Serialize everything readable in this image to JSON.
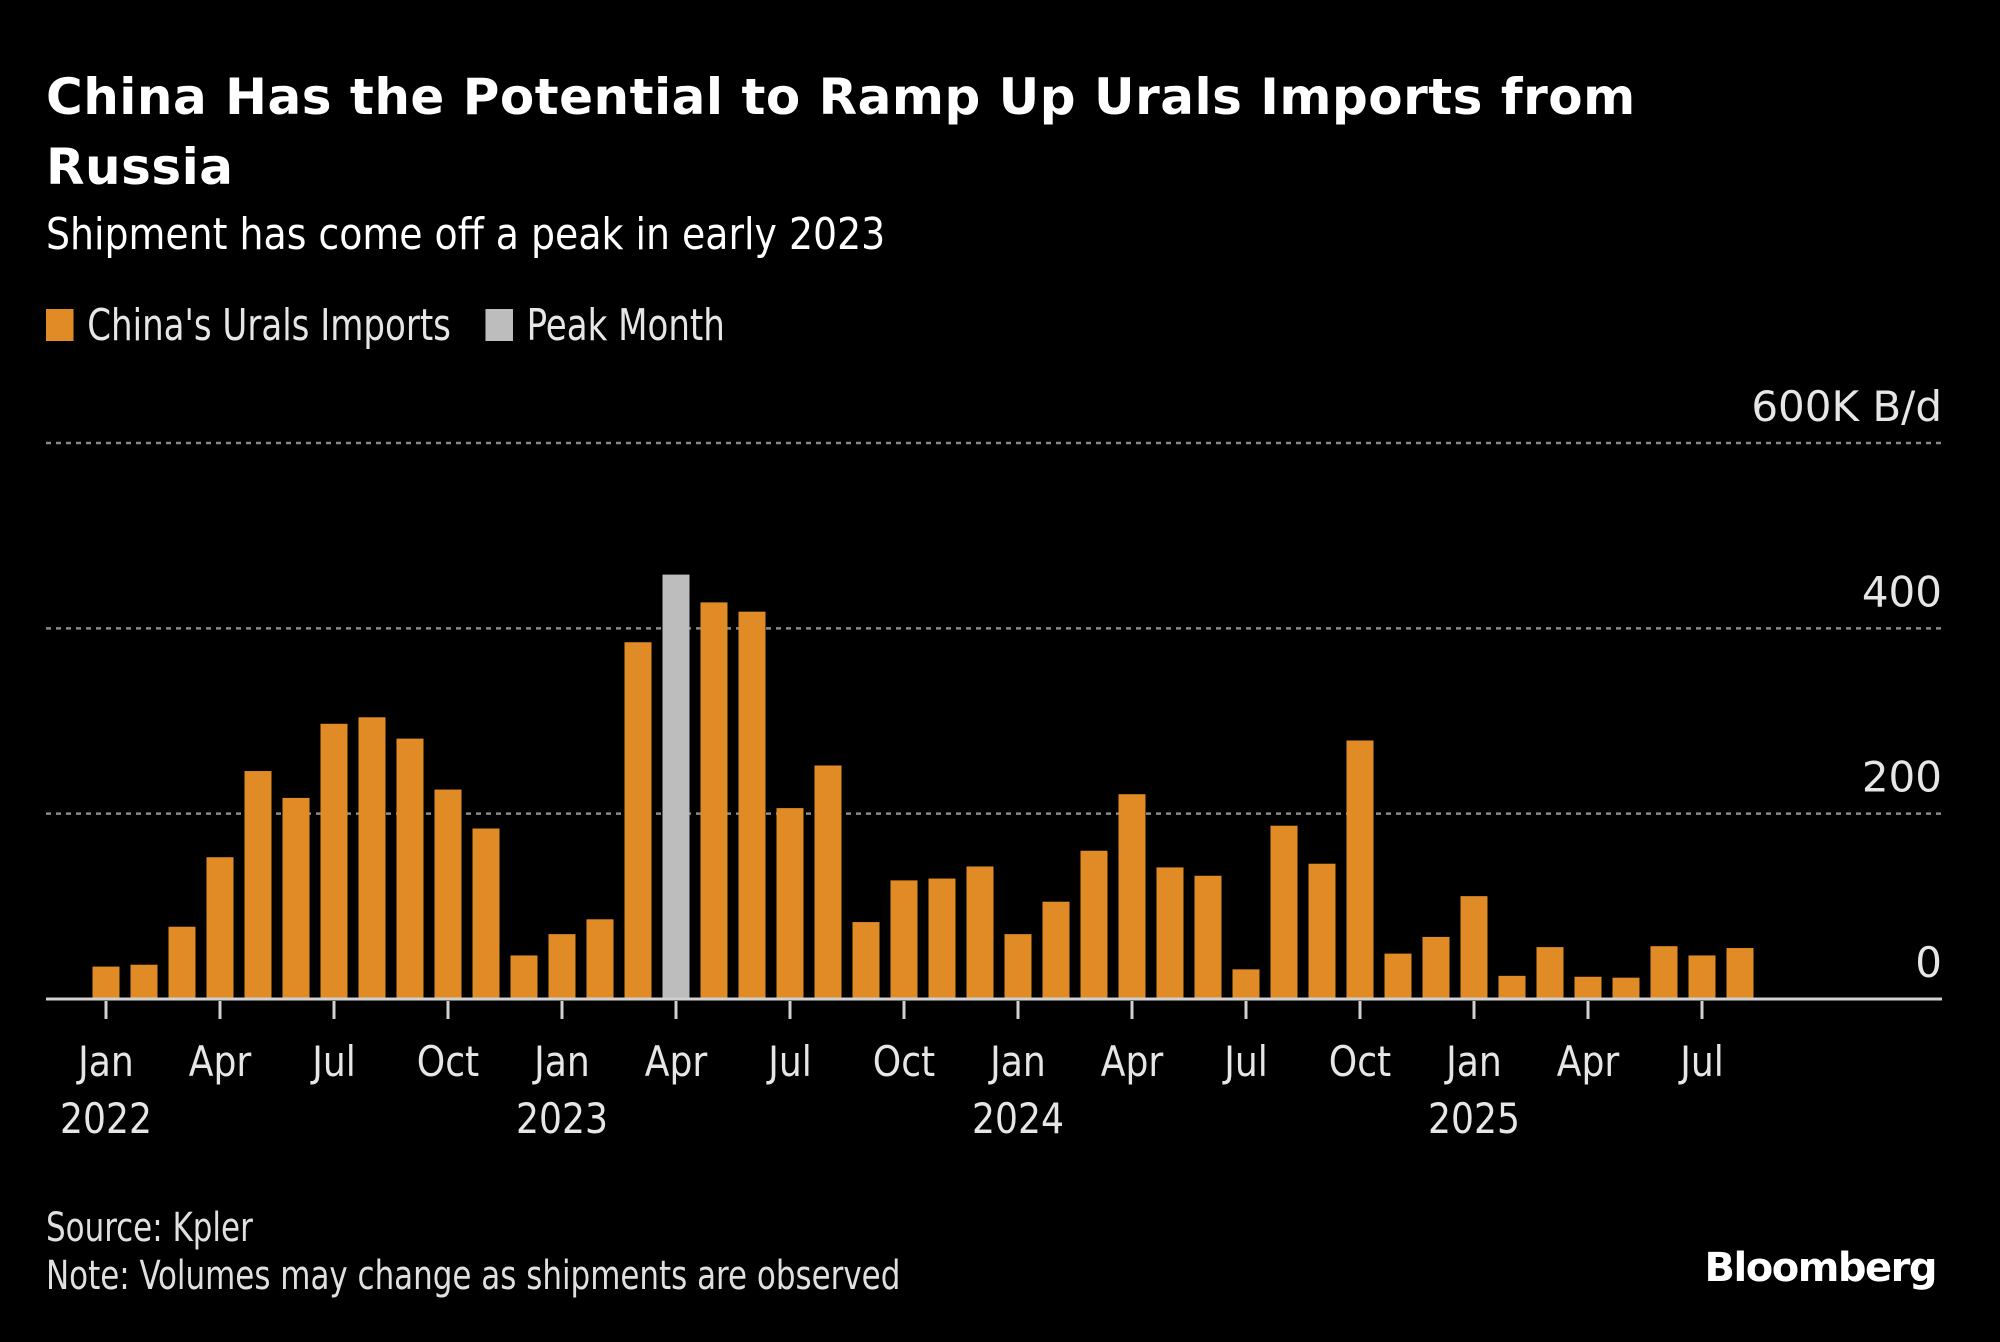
{
  "header": {
    "title": "China Has the Potential to Ramp Up Urals Imports from Russia",
    "subtitle": "Shipment has come off a peak in early 2023"
  },
  "legend": [
    {
      "label": "China's Urals Imports",
      "color": "#E08B25"
    },
    {
      "label": "Peak Month",
      "color": "#BDBDBD"
    }
  ],
  "footer": {
    "source": "Source: Kpler",
    "note": "Note: Volumes may change as shipments are observed",
    "brand": "Bloomberg"
  },
  "chart_data": {
    "type": "bar",
    "title": "China Has the Potential to Ramp Up Urals Imports from Russia",
    "subtitle": "Shipment has come off a peak in early 2023",
    "xlabel": "",
    "ylabel": "600K B/d",
    "unit_label": "600K B/d",
    "ylim": [
      0,
      600
    ],
    "yticks": [
      {
        "value": 0,
        "label": "0"
      },
      {
        "value": 200,
        "label": "200"
      },
      {
        "value": 400,
        "label": "400"
      },
      {
        "value": 600,
        "label": "600K B/d"
      }
    ],
    "grid": true,
    "legend_position": "top-left",
    "peak_category": "2023-04",
    "categories": [
      "2022-01",
      "2022-02",
      "2022-03",
      "2022-04",
      "2022-05",
      "2022-06",
      "2022-07",
      "2022-08",
      "2022-09",
      "2022-10",
      "2022-11",
      "2022-12",
      "2023-01",
      "2023-02",
      "2023-03",
      "2023-04",
      "2023-05",
      "2023-06",
      "2023-07",
      "2023-08",
      "2023-09",
      "2023-10",
      "2023-11",
      "2023-12",
      "2024-01",
      "2024-02",
      "2024-03",
      "2024-04",
      "2024-05",
      "2024-06",
      "2024-07",
      "2024-08",
      "2024-09",
      "2024-10",
      "2024-11",
      "2024-12",
      "2025-01",
      "2025-02",
      "2025-03",
      "2025-04",
      "2025-05",
      "2025-06",
      "2025-07",
      "2025-08"
    ],
    "series": [
      {
        "name": "China's Urals Imports",
        "values": [
          35,
          37,
          78,
          153,
          246,
          217,
          297,
          304,
          281,
          226,
          184,
          47,
          70,
          86,
          385,
          458,
          428,
          418,
          206,
          252,
          83,
          128,
          130,
          143,
          70,
          105,
          160,
          221,
          142,
          133,
          32,
          187,
          146,
          279,
          49,
          67,
          111,
          25,
          56,
          24,
          23,
          57,
          47,
          55
        ]
      }
    ],
    "xticks": [
      {
        "index": 0,
        "month": "Jan",
        "year": "2022"
      },
      {
        "index": 3,
        "month": "Apr",
        "year": ""
      },
      {
        "index": 6,
        "month": "Jul",
        "year": ""
      },
      {
        "index": 9,
        "month": "Oct",
        "year": ""
      },
      {
        "index": 12,
        "month": "Jan",
        "year": "2023"
      },
      {
        "index": 15,
        "month": "Apr",
        "year": ""
      },
      {
        "index": 18,
        "month": "Jul",
        "year": ""
      },
      {
        "index": 21,
        "month": "Oct",
        "year": ""
      },
      {
        "index": 24,
        "month": "Jan",
        "year": "2024"
      },
      {
        "index": 27,
        "month": "Apr",
        "year": ""
      },
      {
        "index": 30,
        "month": "Jul",
        "year": ""
      },
      {
        "index": 33,
        "month": "Oct",
        "year": ""
      },
      {
        "index": 36,
        "month": "Jan",
        "year": "2025"
      },
      {
        "index": 39,
        "month": "Apr",
        "year": ""
      },
      {
        "index": 42,
        "month": "Jul",
        "year": ""
      }
    ]
  }
}
